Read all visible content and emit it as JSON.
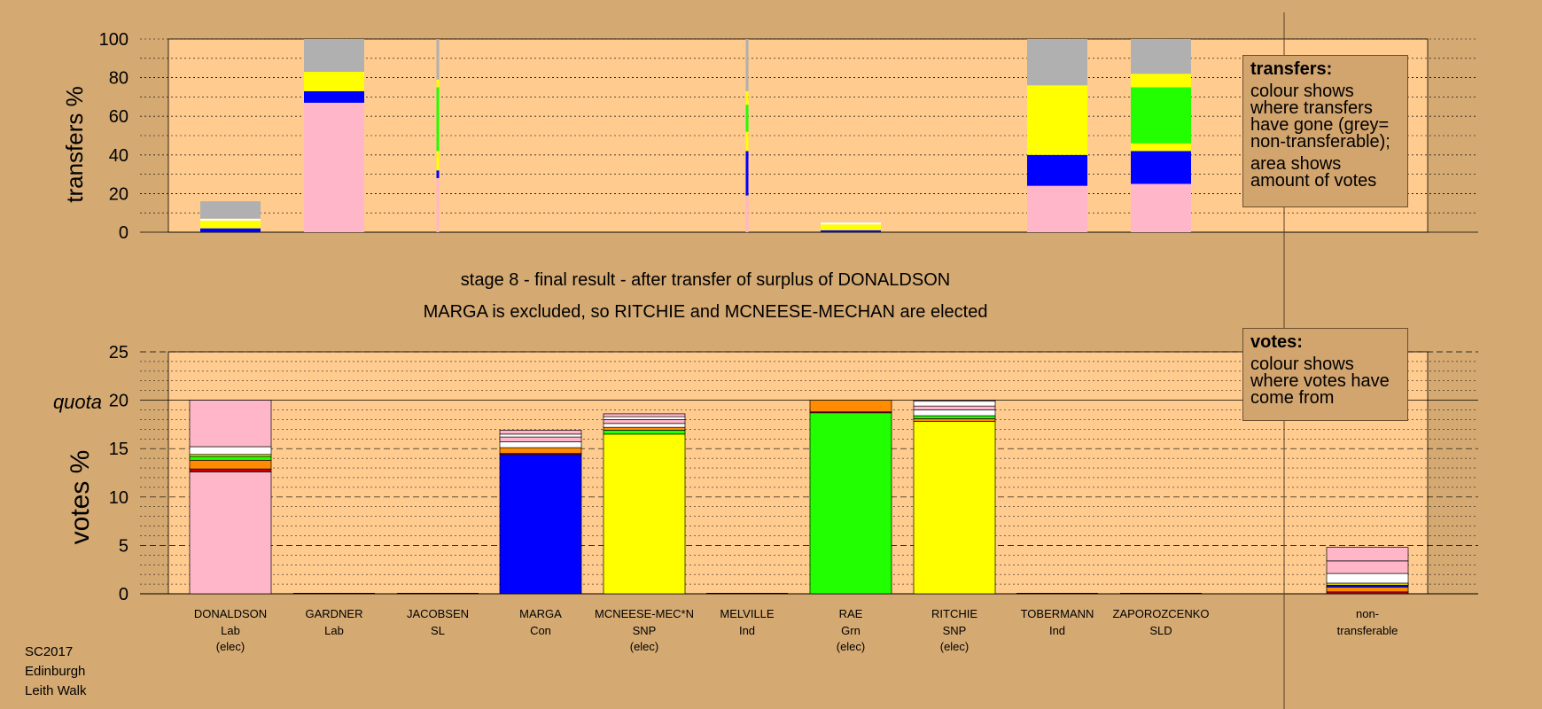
{
  "colors": {
    "page_bg": "#D4A972",
    "plot_bg": "#FFCB8F",
    "Lab": "#FFB6C8",
    "Con": "#0000FF",
    "SNP": "#FFFF00",
    "Grn": "#22FF00",
    "LD": "#FF8C00",
    "SL": "#CC0000",
    "other": "#FFFFFF",
    "nontransferable": "#B0B0B0"
  },
  "chart_data": [
    {
      "type": "bar",
      "name": "transfers",
      "ylabel": "transfers %",
      "ylim": [
        0,
        100
      ],
      "yticks": [
        0,
        20,
        40,
        60,
        80,
        100
      ],
      "grid": true,
      "categories": [
        "DONALDSON",
        "GARDNER",
        "JACOBSEN",
        "MARGA",
        "MCNEESE-MEC*N",
        "MELVILLE",
        "RAE",
        "RITCHIE",
        "TOBERMANN",
        "ZAPOROZCENKO"
      ],
      "bar_widths": [
        "wide",
        "wide",
        "thin",
        "none",
        "none",
        "thin",
        "wide",
        "none",
        "wide",
        "wide"
      ],
      "stacks": [
        [
          {
            "c": "Con",
            "v": 2
          },
          {
            "c": "SNP",
            "v": 4
          },
          {
            "c": "other",
            "v": 1
          },
          {
            "c": "nontransferable",
            "v": 9
          }
        ],
        [
          {
            "c": "Lab",
            "v": 67
          },
          {
            "c": "Con",
            "v": 6
          },
          {
            "c": "SNP",
            "v": 10
          },
          {
            "c": "nontransferable",
            "v": 17
          }
        ],
        [
          {
            "c": "Lab",
            "v": 28
          },
          {
            "c": "Con",
            "v": 4
          },
          {
            "c": "SNP",
            "v": 10
          },
          {
            "c": "Grn",
            "v": 33
          },
          {
            "c": "SNP",
            "v": 4
          },
          {
            "c": "nontransferable",
            "v": 21
          }
        ],
        [],
        [],
        [
          {
            "c": "Lab",
            "v": 19
          },
          {
            "c": "Con",
            "v": 23
          },
          {
            "c": "SNP",
            "v": 10
          },
          {
            "c": "Grn",
            "v": 14
          },
          {
            "c": "SNP",
            "v": 7
          },
          {
            "c": "nontransferable",
            "v": 27
          }
        ],
        [
          {
            "c": "Con",
            "v": 1
          },
          {
            "c": "SNP",
            "v": 3
          },
          {
            "c": "other",
            "v": 1
          }
        ],
        [],
        [
          {
            "c": "Lab",
            "v": 24
          },
          {
            "c": "Con",
            "v": 16
          },
          {
            "c": "SNP",
            "v": 36
          },
          {
            "c": "nontransferable",
            "v": 24
          }
        ],
        [
          {
            "c": "Lab",
            "v": 25
          },
          {
            "c": "Con",
            "v": 17
          },
          {
            "c": "SNP",
            "v": 4
          },
          {
            "c": "Grn",
            "v": 29
          },
          {
            "c": "SNP",
            "v": 7
          },
          {
            "c": "nontransferable",
            "v": 18
          }
        ]
      ],
      "legend_title": "transfers:",
      "legend_lines": [
        "colour shows where transfers have gone (grey= non-transferable);",
        "area shows amount of votes"
      ]
    },
    {
      "type": "bar",
      "name": "votes",
      "ylabel": "votes %",
      "ylim": [
        0,
        25
      ],
      "yticks": [
        0,
        5,
        10,
        15,
        20,
        25
      ],
      "quota": 20,
      "quota_label": "quota",
      "grid": true,
      "categories": [
        "DONALDSON",
        "GARDNER",
        "JACOBSEN",
        "MARGA",
        "MCNEESE-MEC*N",
        "MELVILLE",
        "RAE",
        "RITCHIE",
        "TOBERMANN",
        "ZAPOROZCENKO",
        "non-transferable"
      ],
      "stacks": [
        [
          {
            "c": "Lab",
            "v": 12.6
          },
          {
            "c": "SL",
            "v": 0.3
          },
          {
            "c": "LD",
            "v": 0.9
          },
          {
            "c": "Grn",
            "v": 0.4
          },
          {
            "c": "SNP",
            "v": 0.2
          },
          {
            "c": "other",
            "v": 0.8
          },
          {
            "c": "Lab",
            "v": 4.8
          }
        ],
        [],
        [],
        [
          {
            "c": "Con",
            "v": 14.4
          },
          {
            "c": "SL",
            "v": 0.1
          },
          {
            "c": "LD",
            "v": 0.6
          },
          {
            "c": "other",
            "v": 0.6
          },
          {
            "c": "Lab",
            "v": 0.5
          },
          {
            "c": "other",
            "v": 0.3
          },
          {
            "c": "Lab",
            "v": 0.4
          }
        ],
        [
          {
            "c": "SNP",
            "v": 16.5
          },
          {
            "c": "Grn",
            "v": 0.4
          },
          {
            "c": "LD",
            "v": 0.3
          },
          {
            "c": "other",
            "v": 0.4
          },
          {
            "c": "Lab",
            "v": 0.4
          },
          {
            "c": "other",
            "v": 0.3
          },
          {
            "c": "Lab",
            "v": 0.3
          }
        ],
        [],
        [
          {
            "c": "Grn",
            "v": 18.7
          },
          {
            "c": "SL",
            "v": 0.1
          },
          {
            "c": "LD",
            "v": 1.2
          }
        ],
        [
          {
            "c": "SNP",
            "v": 17.8
          },
          {
            "c": "LD",
            "v": 0.3
          },
          {
            "c": "Grn",
            "v": 0.3
          },
          {
            "c": "other",
            "v": 0.6
          },
          {
            "c": "Lab",
            "v": 0.4
          },
          {
            "c": "other",
            "v": 0.5
          },
          {
            "c": "Lab",
            "v": 0.1
          }
        ],
        [],
        [],
        [
          {
            "c": "SL",
            "v": 0.2
          },
          {
            "c": "LD",
            "v": 0.5
          },
          {
            "c": "Con",
            "v": 0.2
          },
          {
            "c": "SNP",
            "v": 0.2
          },
          {
            "c": "other",
            "v": 1.0
          },
          {
            "c": "Lab",
            "v": 1.3
          },
          {
            "c": "Lab",
            "v": 1.4
          }
        ]
      ],
      "legend_title": "votes:",
      "legend_lines": [
        "colour shows where votes have come from"
      ]
    }
  ],
  "titles": {
    "line1": "stage 8 - final result - after transfer of surplus of DONALDSON",
    "line2": "MARGA is excluded, so RITCHIE and MCNEESE-MECHAN are elected"
  },
  "candidate_labels": [
    {
      "name": "DONALDSON",
      "party": "Lab",
      "status": "(elec)"
    },
    {
      "name": "GARDNER",
      "party": "Lab",
      "status": ""
    },
    {
      "name": "JACOBSEN",
      "party": "SL",
      "status": ""
    },
    {
      "name": "MARGA",
      "party": "Con",
      "status": ""
    },
    {
      "name": "MCNEESE-MEC*N",
      "party": "SNP",
      "status": "(elec)"
    },
    {
      "name": "MELVILLE",
      "party": "Ind",
      "status": ""
    },
    {
      "name": "RAE",
      "party": "Grn",
      "status": "(elec)"
    },
    {
      "name": "RITCHIE",
      "party": "SNP",
      "status": "(elec)"
    },
    {
      "name": "TOBERMANN",
      "party": "Ind",
      "status": ""
    },
    {
      "name": "ZAPOROZCENKO",
      "party": "SLD",
      "status": ""
    },
    {
      "name": "non-",
      "party": "transferable",
      "status": ""
    }
  ],
  "footer": {
    "line1": "SC2017",
    "line2": "Edinburgh",
    "line3": "Leith Walk"
  }
}
